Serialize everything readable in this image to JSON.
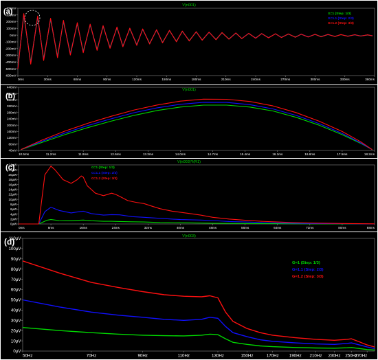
{
  "chart_data": [
    {
      "type": "line",
      "panel_label": "(a)",
      "title": "V(n001)",
      "ylim": [
        -600,
        400
      ],
      "y_ticks": [
        -600,
        -500,
        -400,
        -300,
        -200,
        -100,
        0,
        100,
        200,
        300,
        400
      ],
      "y_tick_labels": [
        "-600mV",
        "-500mV",
        "-400mV",
        "-300mV",
        "-200mV",
        "-100mV",
        "0mV",
        "100mV",
        "200mV",
        "300mV",
        "400mV"
      ],
      "xlim": [
        0,
        360
      ],
      "x_ticks": [
        0,
        30,
        60,
        90,
        120,
        150,
        180,
        210,
        240,
        270,
        300,
        330,
        360
      ],
      "x_tick_labels": [
        "0ms",
        "30ms",
        "60ms",
        "90ms",
        "120ms",
        "150ms",
        "180ms",
        "210ms",
        "240ms",
        "270ms",
        "300ms",
        "330ms",
        "360ms"
      ],
      "legend": [
        "G=1  (Step: 1/3)",
        "G=1.1  (Step: 2/3)",
        "G=1.2  (Step: 3/3)"
      ],
      "legend_position": "top-right",
      "series": [
        {
          "name": "G=1  (Step: 1/3)",
          "color": "#00d800",
          "x": [
            0,
            6,
            13,
            20,
            26,
            33,
            40,
            46,
            53,
            60,
            66,
            73,
            80,
            86,
            93,
            100,
            106,
            113,
            120,
            126,
            133,
            140,
            146,
            153,
            160,
            166,
            173,
            180,
            186,
            193,
            200,
            206,
            213,
            220,
            226,
            233,
            240,
            246,
            253,
            260,
            266,
            273,
            280,
            286,
            293,
            300,
            306,
            313,
            320,
            326,
            333,
            340,
            346,
            353,
            358
          ],
          "y": [
            -470,
            290,
            -400,
            260,
            -350,
            230,
            -310,
            200,
            -270,
            170,
            -240,
            150,
            -210,
            130,
            -180,
            110,
            -160,
            95,
            -140,
            85,
            -120,
            75,
            -105,
            65,
            -90,
            55,
            -80,
            48,
            -70,
            42,
            -62,
            36,
            -55,
            30,
            -48,
            25,
            -42,
            22,
            -36,
            19,
            -32,
            16,
            -28,
            13,
            -24,
            11,
            -20,
            9,
            -17,
            7,
            -14,
            5,
            -11,
            3,
            -8
          ]
        },
        {
          "name": "G=1.1  (Step: 2/3)",
          "color": "#1010ff",
          "x": [
            0,
            6,
            13,
            20,
            26,
            33,
            40,
            46,
            53,
            60,
            66,
            73,
            80,
            86,
            93,
            100,
            106,
            113,
            120,
            126,
            133,
            140,
            146,
            153,
            160,
            166,
            173,
            180,
            186,
            193,
            200,
            206,
            213,
            220,
            226,
            233,
            240,
            246,
            253,
            260,
            266,
            273,
            280,
            286,
            293,
            300,
            306,
            313,
            320,
            326,
            333,
            340,
            346,
            353,
            358
          ],
          "y": [
            -485,
            305,
            -415,
            272,
            -362,
            240,
            -322,
            210,
            -282,
            178,
            -250,
            157,
            -218,
            136,
            -188,
            116,
            -166,
            100,
            -146,
            89,
            -126,
            79,
            -110,
            68,
            -94,
            58,
            -84,
            50,
            -73,
            44,
            -65,
            38,
            -58,
            32,
            -50,
            27,
            -44,
            23,
            -38,
            20,
            -34,
            17,
            -30,
            14,
            -26,
            12,
            -22,
            10,
            -18,
            8,
            -15,
            6,
            -12,
            4,
            -9
          ]
        },
        {
          "name": "G=1.2  (Step: 3/3)",
          "color": "#ff1010",
          "x": [
            0,
            6,
            13,
            20,
            26,
            33,
            40,
            46,
            53,
            60,
            66,
            73,
            80,
            86,
            93,
            100,
            106,
            113,
            120,
            126,
            133,
            140,
            146,
            153,
            160,
            166,
            173,
            180,
            186,
            193,
            200,
            206,
            213,
            220,
            226,
            233,
            240,
            246,
            253,
            260,
            266,
            273,
            280,
            286,
            293,
            300,
            306,
            313,
            320,
            326,
            333,
            340,
            346,
            353,
            358
          ],
          "y": [
            -500,
            320,
            -430,
            285,
            -375,
            250,
            -335,
            220,
            -295,
            186,
            -260,
            164,
            -226,
            142,
            -195,
            121,
            -172,
            104,
            -152,
            93,
            -131,
            82,
            -114,
            71,
            -98,
            61,
            -87,
            52,
            -76,
            46,
            -68,
            40,
            -60,
            34,
            -52,
            28,
            -46,
            24,
            -40,
            21,
            -36,
            18,
            -32,
            15,
            -28,
            13,
            -24,
            11,
            -20,
            9,
            -16,
            7,
            -13,
            5,
            -10
          ]
        }
      ]
    },
    {
      "type": "line",
      "panel_label": "(b)",
      "title": "V(n001)",
      "ylim": [
        40,
        440
      ],
      "y_ticks": [
        40,
        80,
        120,
        160,
        200,
        240,
        280,
        320,
        360,
        400,
        440
      ],
      "y_tick_labels": [
        "40mV",
        "80mV",
        "120mV",
        "160mV",
        "200mV",
        "240mV",
        "280mV",
        "320mV",
        "360mV",
        "400mV",
        "440mV"
      ],
      "xlim": [
        10.5,
        18.2
      ],
      "x_ticks": [
        10.5,
        11.2,
        11.9,
        12.6,
        13.3,
        14.0,
        14.7,
        15.4,
        16.1,
        16.8,
        17.5,
        18.2
      ],
      "x_tick_labels": [
        "10.5ms",
        "11.2ms",
        "11.9ms",
        "12.6ms",
        "13.3ms",
        "14.0ms",
        "14.7ms",
        "15.4ms",
        "16.1ms",
        "16.8ms",
        "17.5ms",
        "18.2ms"
      ],
      "series": [
        {
          "name": "G=1  (Step: 1/3)",
          "color": "#00d800",
          "x": [
            10.55,
            11.0,
            11.5,
            12.0,
            12.5,
            13.0,
            13.5,
            14.0,
            14.5,
            15.0,
            15.5,
            16.0,
            16.5,
            17.0,
            17.5,
            17.9,
            18.15
          ],
          "y": [
            45,
            90,
            140,
            185,
            225,
            262,
            293,
            315,
            327,
            327,
            315,
            290,
            250,
            200,
            140,
            85,
            45
          ]
        },
        {
          "name": "G=1.1  (Step: 2/3)",
          "color": "#1010ff",
          "x": [
            10.55,
            11.0,
            11.5,
            12.0,
            12.5,
            13.0,
            13.5,
            14.0,
            14.5,
            15.0,
            15.5,
            16.0,
            16.5,
            17.0,
            17.5,
            17.9,
            18.15
          ],
          "y": [
            45,
            97,
            150,
            198,
            240,
            279,
            310,
            332,
            345,
            344,
            330,
            303,
            262,
            210,
            148,
            88,
            45
          ]
        },
        {
          "name": "G=1.2  (Step: 3/3)",
          "color": "#ff1010",
          "x": [
            10.55,
            11.0,
            11.5,
            12.0,
            12.5,
            13.0,
            13.5,
            14.0,
            14.5,
            15.0,
            15.5,
            16.0,
            16.5,
            17.0,
            17.5,
            17.9,
            18.15
          ],
          "y": [
            45,
            105,
            162,
            212,
            256,
            296,
            328,
            352,
            365,
            364,
            350,
            322,
            280,
            225,
            160,
            95,
            45
          ]
        }
      ]
    },
    {
      "type": "line",
      "panel_label": "(c)",
      "title": "V(n003)*I(R1)",
      "ylim": [
        0,
        24
      ],
      "y_ticks": [
        0,
        2,
        4,
        6,
        8,
        10,
        12,
        14,
        16,
        18,
        20,
        22,
        24
      ],
      "y_tick_labels": [
        "0μW",
        "2μW",
        "4μW",
        "6μW",
        "8μW",
        "10μW",
        "12μW",
        "14μW",
        "16μW",
        "18μW",
        "20μW",
        "22μW",
        "24μW"
      ],
      "xlim": [
        0,
        88
      ],
      "x_ticks": [
        0,
        8,
        16,
        24,
        32,
        40,
        48,
        56,
        64,
        72,
        80,
        88
      ],
      "x_tick_labels": [
        "0ms",
        "8ms",
        "16ms",
        "24ms",
        "32ms",
        "40ms",
        "48ms",
        "56ms",
        "64ms",
        "72ms",
        "80ms",
        "88ms"
      ],
      "legend": [
        "G=1  (Step: 1/3)",
        "G=1.1  (Step: 2/3)",
        "G=1.2  (Step: 3/3)"
      ],
      "legend_position": "top-center",
      "series": [
        {
          "name": "G=1  (Step: 1/3)",
          "color": "#00d800",
          "x": [
            0,
            5,
            7,
            8,
            10,
            13,
            15,
            16,
            18,
            21,
            23,
            25,
            28,
            31,
            35,
            40,
            48,
            56,
            64,
            72,
            80,
            88
          ],
          "y": [
            0,
            0,
            1.5,
            1.8,
            1.4,
            1.3,
            1.5,
            1.6,
            1.3,
            1.1,
            1.1,
            1.0,
            0.9,
            0.8,
            0.6,
            0.5,
            0.3,
            0.2,
            0.1,
            0.05,
            0.02,
            0
          ]
        },
        {
          "name": "G=1.1  (Step: 2/3)",
          "color": "#1010ff",
          "x": [
            0,
            5,
            6.5,
            8,
            10,
            13,
            15,
            16,
            18,
            21,
            23,
            25,
            28,
            31,
            35,
            40,
            45,
            48,
            52,
            56,
            64,
            72,
            80,
            88
          ],
          "y": [
            0,
            0,
            5,
            6.8,
            5.5,
            4.5,
            5.0,
            5.2,
            4.2,
            3.6,
            3.8,
            3.7,
            3.0,
            2.7,
            2.3,
            1.8,
            1.6,
            1.4,
            1.0,
            0.8,
            0.4,
            0.2,
            0.1,
            0
          ]
        },
        {
          "name": "G=1.2  (Step: 3/3)",
          "color": "#ff1010",
          "x": [
            0,
            5,
            6.5,
            8,
            9,
            11,
            13,
            14.5,
            15.5,
            16,
            17,
            19,
            21,
            23,
            24,
            25,
            27,
            29,
            31,
            33,
            35,
            38,
            42,
            45,
            48,
            52,
            56,
            60,
            64,
            68,
            72,
            76,
            80,
            84,
            88
          ],
          "y": [
            0,
            0,
            20,
            23.5,
            22,
            18,
            16.5,
            18,
            19.5,
            19,
            15.5,
            12.5,
            11.5,
            12.5,
            12,
            11.2,
            9.5,
            8.8,
            8.3,
            7.2,
            6.2,
            5.2,
            4.3,
            3.6,
            2.7,
            2.0,
            1.5,
            1.1,
            0.8,
            0.55,
            0.4,
            0.3,
            0.2,
            0.1,
            0.05
          ]
        }
      ]
    },
    {
      "type": "line",
      "panel_label": "(d)",
      "title": "V(n003)",
      "ylim": [
        0,
        110
      ],
      "y_ticks": [
        0,
        10,
        20,
        30,
        40,
        50,
        60,
        70,
        80,
        90,
        100,
        110
      ],
      "y_tick_labels": [
        "0μV",
        "10μV",
        "20μV",
        "30μV",
        "40μV",
        "50μV",
        "60μV",
        "70μV",
        "80μV",
        "90μV",
        "100μV",
        "110μV"
      ],
      "xlim": [
        50,
        280
      ],
      "x_scale": "log",
      "x_ticks": [
        50,
        70,
        90,
        110,
        130,
        150,
        170,
        190,
        210,
        230,
        250,
        270
      ],
      "x_tick_labels": [
        "50Hz",
        "70Hz",
        "90Hz",
        "110Hz",
        "130Hz",
        "150Hz",
        "170Hz",
        "190Hz",
        "210Hz",
        "230Hz",
        "250Hz",
        "270Hz"
      ],
      "legend": [
        "G=1  (Step: 1/3)",
        "G=1.1  (Step: 2/3)",
        "G=1.2  (Step: 3/3)"
      ],
      "legend_position": "top-right",
      "series": [
        {
          "name": "G=1  (Step: 1/3)",
          "color": "#00d800",
          "x": [
            50,
            60,
            70,
            80,
            90,
            100,
            110,
            120,
            125,
            130,
            135,
            140,
            150,
            160,
            170,
            190,
            210,
            230,
            245,
            250,
            260,
            270,
            280
          ],
          "y": [
            23,
            20,
            18,
            16.5,
            15.5,
            15,
            14.8,
            15.5,
            16.5,
            16,
            12,
            8.5,
            6.5,
            5,
            4.3,
            3.5,
            3,
            2.8,
            3.2,
            3.5,
            2.5,
            1.5,
            1
          ]
        },
        {
          "name": "G=1.1  (Step: 2/3)",
          "color": "#1010ff",
          "x": [
            50,
            60,
            70,
            80,
            90,
            100,
            110,
            120,
            125,
            130,
            135,
            140,
            150,
            160,
            170,
            190,
            210,
            230,
            245,
            250,
            260,
            270,
            280
          ],
          "y": [
            50,
            43,
            38,
            35,
            33,
            31,
            30,
            31,
            33,
            32,
            24,
            18,
            14,
            11,
            9.5,
            8,
            7,
            6.5,
            7.5,
            8,
            6,
            4,
            2.5
          ]
        },
        {
          "name": "G=1.2  (Step: 3/3)",
          "color": "#ff1010",
          "x": [
            50,
            60,
            70,
            80,
            90,
            100,
            110,
            120,
            125,
            130,
            135,
            140,
            150,
            160,
            170,
            190,
            210,
            230,
            245,
            250,
            260,
            270,
            280
          ],
          "y": [
            88,
            76,
            67,
            62,
            58,
            55,
            53.5,
            53,
            54,
            52,
            38,
            29,
            22,
            18,
            15.5,
            13,
            11.5,
            10.5,
            11.5,
            12,
            9,
            6,
            4
          ]
        }
      ]
    }
  ]
}
